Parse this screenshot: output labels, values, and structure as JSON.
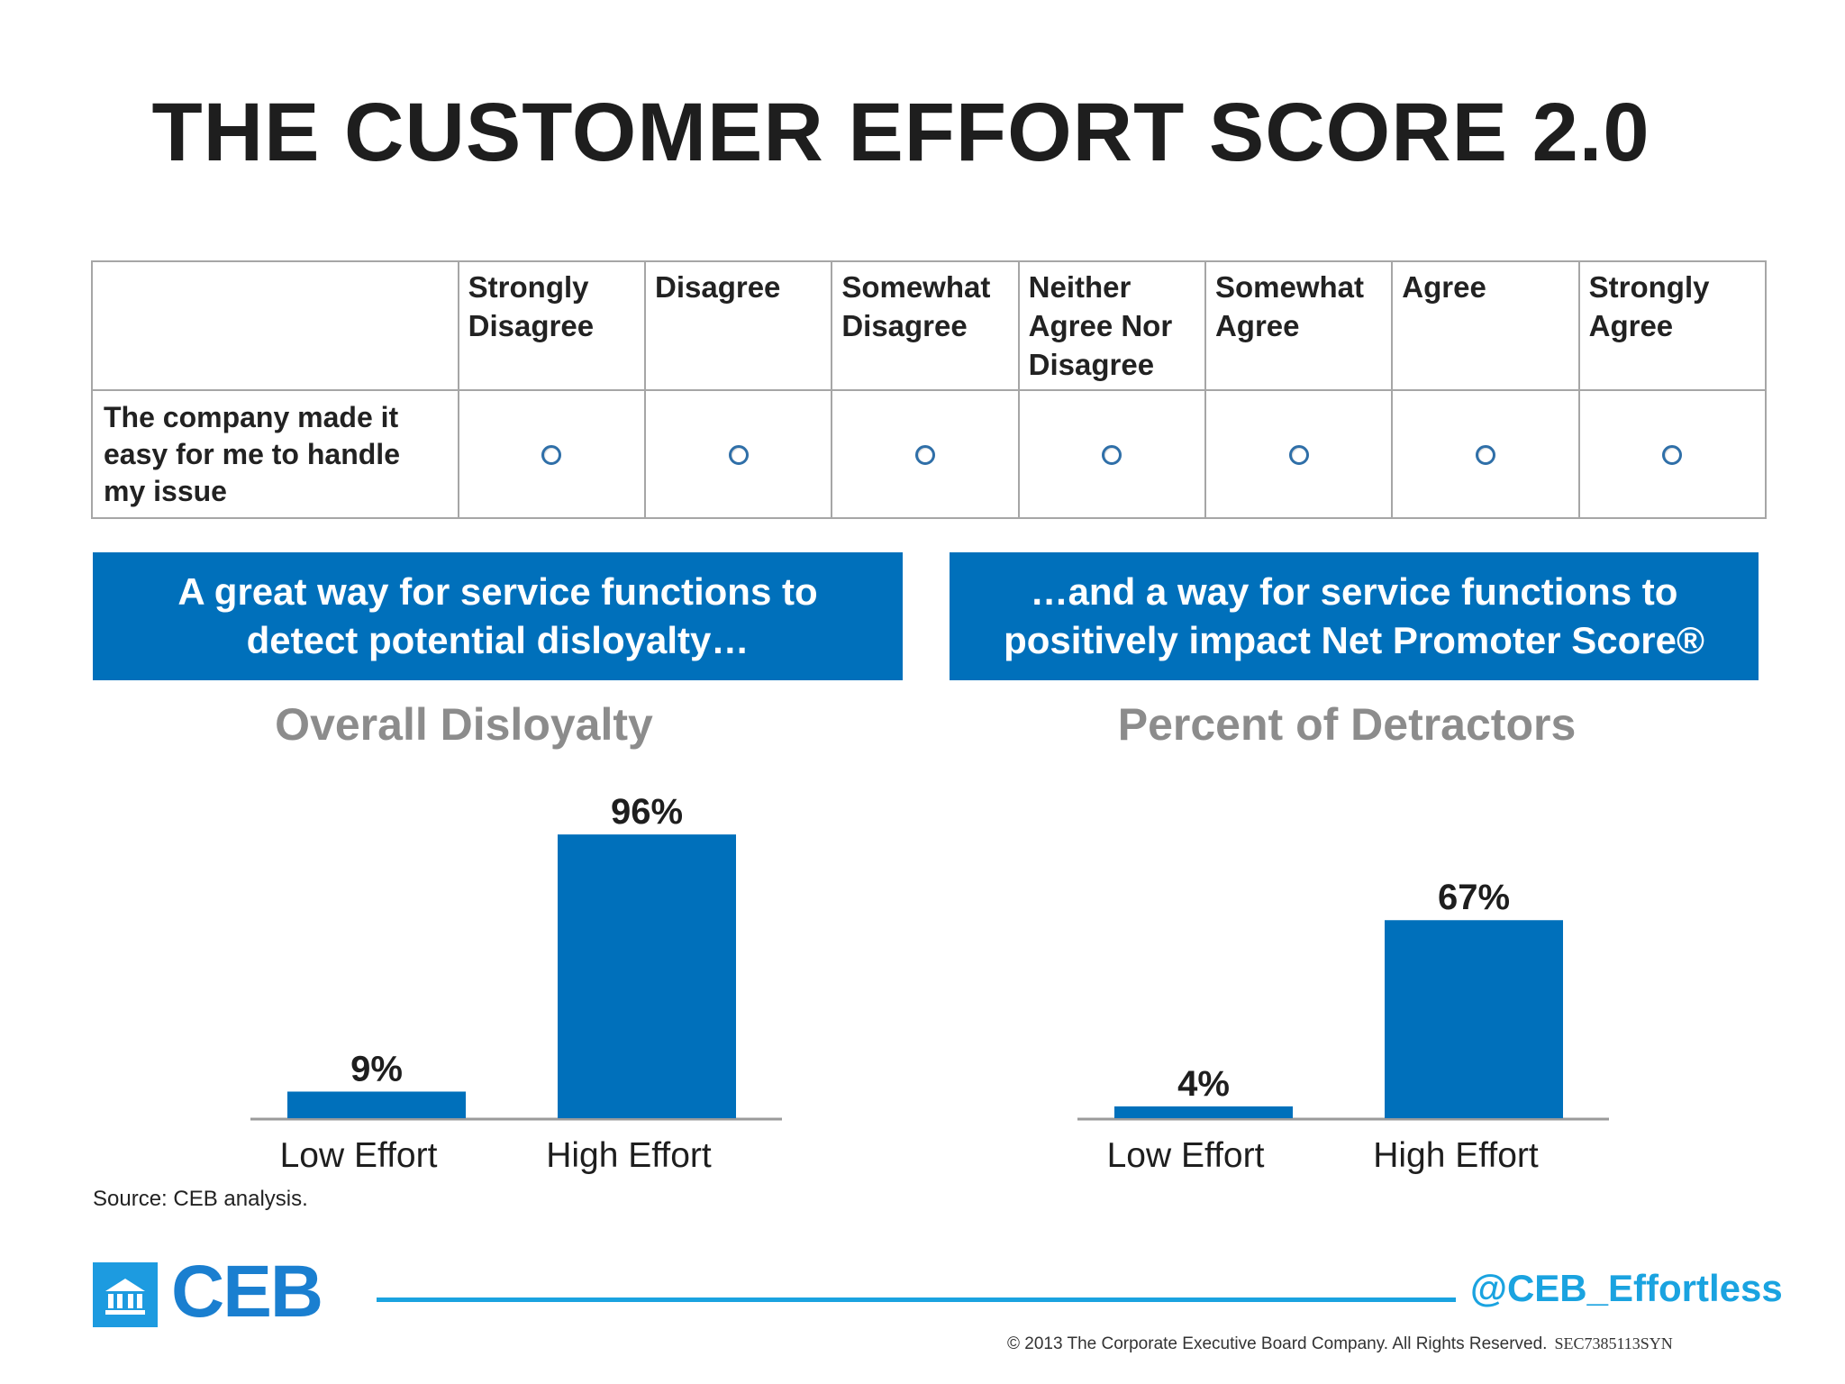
{
  "title": "THE CUSTOMER EFFORT SCORE 2.0",
  "survey": {
    "columns": [
      [
        "Strongly",
        "Disagree"
      ],
      [
        "Disagree"
      ],
      [
        "Somewhat",
        "Disagree"
      ],
      [
        "Neither",
        "Agree Nor",
        "Disagree"
      ],
      [
        "Somewhat",
        "Agree"
      ],
      [
        "Agree"
      ],
      [
        "Strongly",
        "Agree"
      ]
    ],
    "statement": [
      "The company made it",
      "easy for me to handle",
      "my issue"
    ]
  },
  "banners": {
    "left": [
      "A great way for service functions to",
      "detect potential disloyalty…"
    ],
    "right": [
      "…and a way for service functions to",
      "positively impact Net Promoter Score®"
    ]
  },
  "chart_data": [
    {
      "type": "bar",
      "title": "Overall Disloyalty",
      "categories": [
        "Low Effort",
        "High Effort"
      ],
      "values": [
        9,
        96
      ],
      "data_labels": [
        "9%",
        "96%"
      ],
      "ylim": [
        0,
        100
      ],
      "color": "#0070bb"
    },
    {
      "type": "bar",
      "title": "Percent of Detractors",
      "categories": [
        "Low Effort",
        "High Effort"
      ],
      "values": [
        4,
        67
      ],
      "data_labels": [
        "4%",
        "67%"
      ],
      "ylim": [
        0,
        100
      ],
      "color": "#0070bb"
    }
  ],
  "source": "Source: CEB analysis.",
  "footer": {
    "logo": "CEB",
    "handle": "@CEB_Effortless",
    "copyright": "© 2013 The Corporate Executive Board Company. All Rights Reserved.",
    "code": "SEC7385113SYN"
  },
  "colors": {
    "bar": "#0070bb",
    "banner": "#0070bb",
    "accent": "#1aa3e0",
    "title_gray": "#8c8c8c"
  }
}
